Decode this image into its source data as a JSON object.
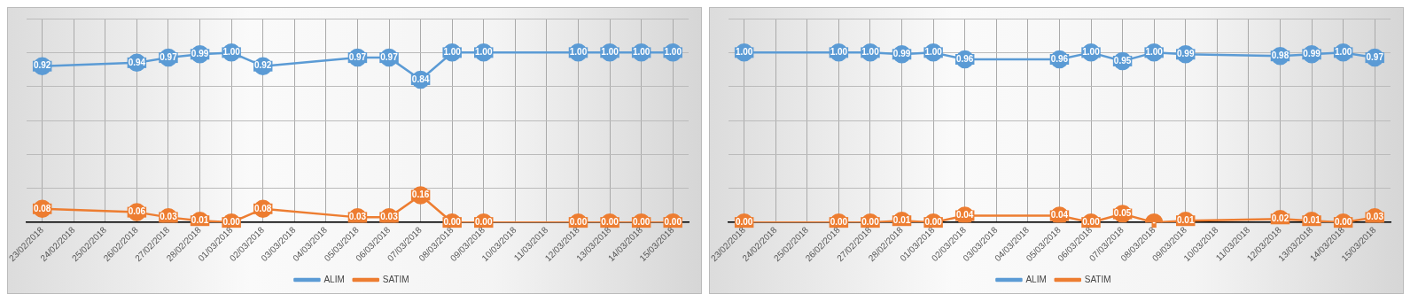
{
  "chart_data": [
    {
      "type": "line",
      "categories": [
        "23/02/2018",
        "24/02/2018",
        "25/02/2018",
        "26/02/2018",
        "27/02/2018",
        "28/02/2018",
        "01/03/2018",
        "02/03/2018",
        "03/03/2018",
        "04/03/2018",
        "05/03/2018",
        "06/03/2018",
        "07/03/2018",
        "08/03/2018",
        "09/03/2018",
        "10/03/2018",
        "11/03/2018",
        "12/03/2018",
        "13/03/2018",
        "14/03/2018",
        "15/03/2018"
      ],
      "series": [
        {
          "name": "ALIM",
          "color": "#5b9bd5",
          "values": [
            0.92,
            null,
            null,
            0.94,
            0.97,
            0.99,
            1.0,
            0.92,
            null,
            null,
            0.97,
            0.97,
            0.84,
            1.0,
            1.0,
            null,
            null,
            1.0,
            1.0,
            1.0,
            1.0
          ],
          "value_labels": [
            "0.92",
            null,
            null,
            "0.94",
            "0.97",
            "0.99",
            "1.00",
            "0.92",
            null,
            null,
            "0.97",
            "0.97",
            "0.84",
            "1.00",
            "1.00",
            null,
            null,
            "1.00",
            "1.00",
            "1.00",
            "1.00"
          ]
        },
        {
          "name": "SATIM",
          "color": "#ed7d31",
          "values": [
            0.08,
            null,
            null,
            0.06,
            0.03,
            0.01,
            0.0,
            0.08,
            null,
            null,
            0.03,
            0.03,
            0.16,
            0.0,
            0.0,
            null,
            null,
            0.0,
            0.0,
            0.0,
            0.0
          ],
          "value_labels": [
            "0.08",
            null,
            null,
            "0.06",
            "0.03",
            "0.01",
            "0.00",
            "0.08",
            null,
            null,
            "0.03",
            "0.03",
            "0.16",
            "0.00",
            "0.00",
            null,
            null,
            "0.00",
            "0.00",
            "0.00",
            "0.00"
          ]
        }
      ],
      "ylim": [
        0,
        1.2
      ],
      "yticks": [
        {
          "value": 0,
          "label": null
        },
        {
          "value": 0.2,
          "label": null
        },
        {
          "value": 0.4,
          "label": null
        },
        {
          "value": 0.6,
          "label": null
        },
        {
          "value": 0.8,
          "label": null
        },
        {
          "value": 1.0,
          "label": null
        },
        {
          "value": 1.2,
          "label": null
        }
      ],
      "tick_labels": "x",
      "grid": true,
      "legend": "bottom",
      "marker": "circle"
    },
    {
      "type": "line",
      "categories": [
        "23/02/2018",
        "24/02/2018",
        "25/02/2018",
        "26/02/2018",
        "27/02/2018",
        "28/02/2018",
        "01/03/2018",
        "02/03/2018",
        "03/03/2018",
        "04/03/2018",
        "05/03/2018",
        "06/03/2018",
        "07/03/2018",
        "08/03/2018",
        "09/03/2018",
        "10/03/2018",
        "11/03/2018",
        "12/03/2018",
        "13/03/2018",
        "14/03/2018",
        "15/03/2018"
      ],
      "series": [
        {
          "name": "ALIM",
          "color": "#5b9bd5",
          "values": [
            1.0,
            null,
            null,
            1.0,
            1.0,
            0.99,
            1.0,
            0.96,
            null,
            null,
            0.96,
            1.0,
            0.95,
            1.0,
            0.99,
            null,
            null,
            0.98,
            0.99,
            1.0,
            0.97
          ],
          "value_labels": [
            "1.00",
            null,
            null,
            "1.00",
            "1.00",
            "0.99",
            "1.00",
            "0.96",
            null,
            null,
            "0.96",
            "1.00",
            "0.95",
            "1.00",
            "0.99",
            null,
            null,
            "0.98",
            "0.99",
            "1.00",
            "0.97"
          ]
        },
        {
          "name": "SATIM",
          "color": "#ed7d31",
          "values": [
            0.0,
            null,
            null,
            0.0,
            0.0,
            0.01,
            0.0,
            0.04,
            null,
            null,
            0.04,
            0.0,
            0.05,
            0,
            0.01,
            null,
            null,
            0.02,
            0.01,
            0.0,
            0.03
          ],
          "value_labels": [
            "0.00",
            null,
            null,
            "0.00",
            "0.00",
            "0.01",
            "0.00",
            "0.04",
            null,
            null,
            "0.04",
            "0.00",
            "0.05",
            "-",
            "0.01",
            null,
            null,
            "0.02",
            "0.01",
            "0.00",
            "0.03"
          ]
        }
      ],
      "ylim": [
        0,
        1.2
      ],
      "yticks": [
        {
          "value": 0,
          "label": null
        },
        {
          "value": 0.2,
          "label": null
        },
        {
          "value": 0.4,
          "label": null
        },
        {
          "value": 0.6,
          "label": null
        },
        {
          "value": 0.8,
          "label": null
        },
        {
          "value": 1.0,
          "label": null
        },
        {
          "value": 1.2,
          "label": null
        }
      ],
      "tick_labels": "x",
      "grid": true,
      "legend": "bottom",
      "marker": "circle"
    }
  ]
}
